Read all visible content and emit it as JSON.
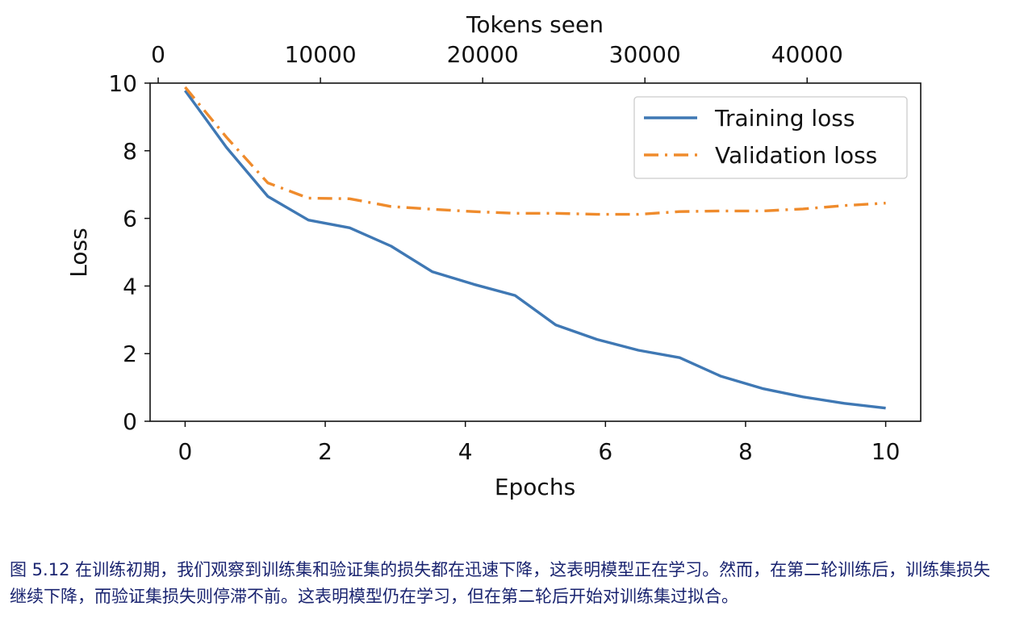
{
  "chart_data": {
    "type": "line",
    "xlabel": "Epochs",
    "ylabel": "Loss",
    "top_xlabel": "Tokens seen",
    "xlim": [
      -0.5,
      10.5
    ],
    "ylim": [
      0,
      10
    ],
    "top_xlim": [
      -500,
      47000
    ],
    "x_ticks": [
      0,
      2,
      4,
      6,
      8,
      10
    ],
    "y_ticks": [
      0,
      2,
      4,
      6,
      8,
      10
    ],
    "top_x_ticks": [
      0,
      10000,
      20000,
      30000,
      40000
    ],
    "legend_position": "top-right",
    "grid": false,
    "x": [
      0,
      0.59,
      1.18,
      1.76,
      2.35,
      2.94,
      3.53,
      4.12,
      4.71,
      5.29,
      5.88,
      6.47,
      7.06,
      7.65,
      8.24,
      8.82,
      9.41,
      10
    ],
    "series": [
      {
        "name": "Training loss",
        "color": "#3f78b4",
        "style": "solid",
        "values": [
          9.78,
          8.1,
          6.65,
          5.95,
          5.72,
          5.18,
          4.42,
          4.05,
          3.72,
          2.85,
          2.42,
          2.1,
          1.88,
          1.33,
          0.97,
          0.72,
          0.53,
          0.39
        ]
      },
      {
        "name": "Validation loss",
        "color": "#ef8b2c",
        "style": "dashdot",
        "values": [
          9.88,
          8.4,
          7.05,
          6.6,
          6.58,
          6.35,
          6.27,
          6.2,
          6.15,
          6.15,
          6.12,
          6.12,
          6.2,
          6.22,
          6.22,
          6.28,
          6.38,
          6.45
        ]
      }
    ]
  },
  "caption": "图 5.12 在训练初期，我们观察到训练集和验证集的损失都在迅速下降，这表明模型正在学习。然而，在第二轮训练后，训练集损失继续下降，而验证集损失则停滞不前。这表明模型仍在学习，但在第二轮后开始对训练集过拟合。"
}
